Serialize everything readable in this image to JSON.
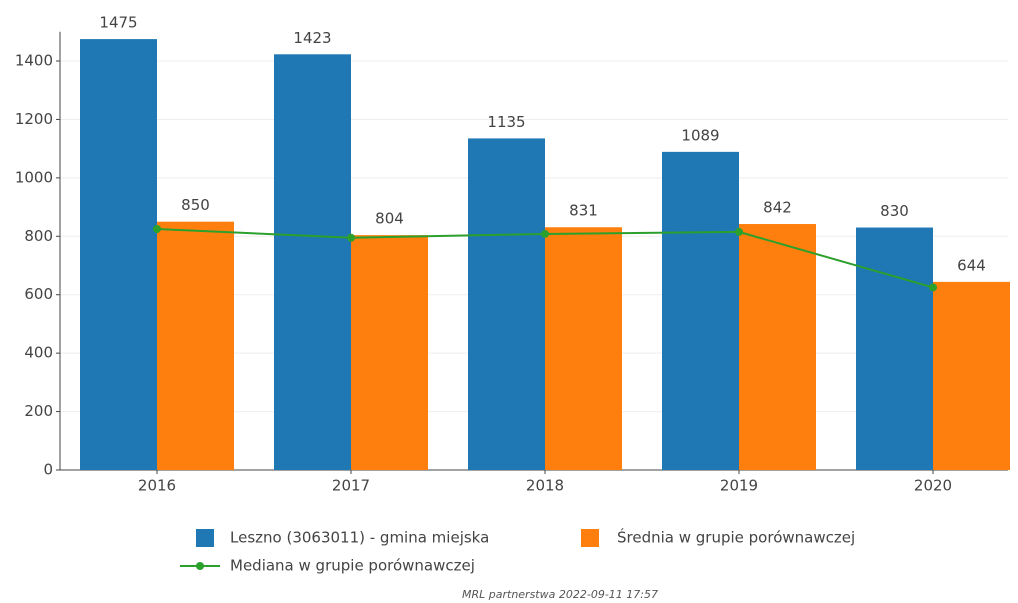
{
  "chart_data": {
    "type": "bar",
    "categories": [
      "2016",
      "2017",
      "2018",
      "2019",
      "2020"
    ],
    "series": [
      {
        "name": "Leszno (3063011) - gmina miejska",
        "color": "#1f77b4",
        "values": [
          1475,
          1423,
          1135,
          1089,
          830
        ]
      },
      {
        "name": "Średnia w grupie porównawczej",
        "color": "#ff7f0e",
        "values": [
          850,
          804,
          831,
          842,
          644
        ]
      },
      {
        "name": "Mediana w grupie porównawczej",
        "color": "#2ca02c",
        "type": "line",
        "values": [
          825,
          795,
          808,
          815,
          625
        ]
      }
    ],
    "ylim": [
      0,
      1500
    ],
    "yticks": [
      0,
      200,
      400,
      600,
      800,
      1000,
      1200,
      1400
    ],
    "grid": true,
    "footer": "MRL partnerstwa 2022-09-11 17:57"
  }
}
